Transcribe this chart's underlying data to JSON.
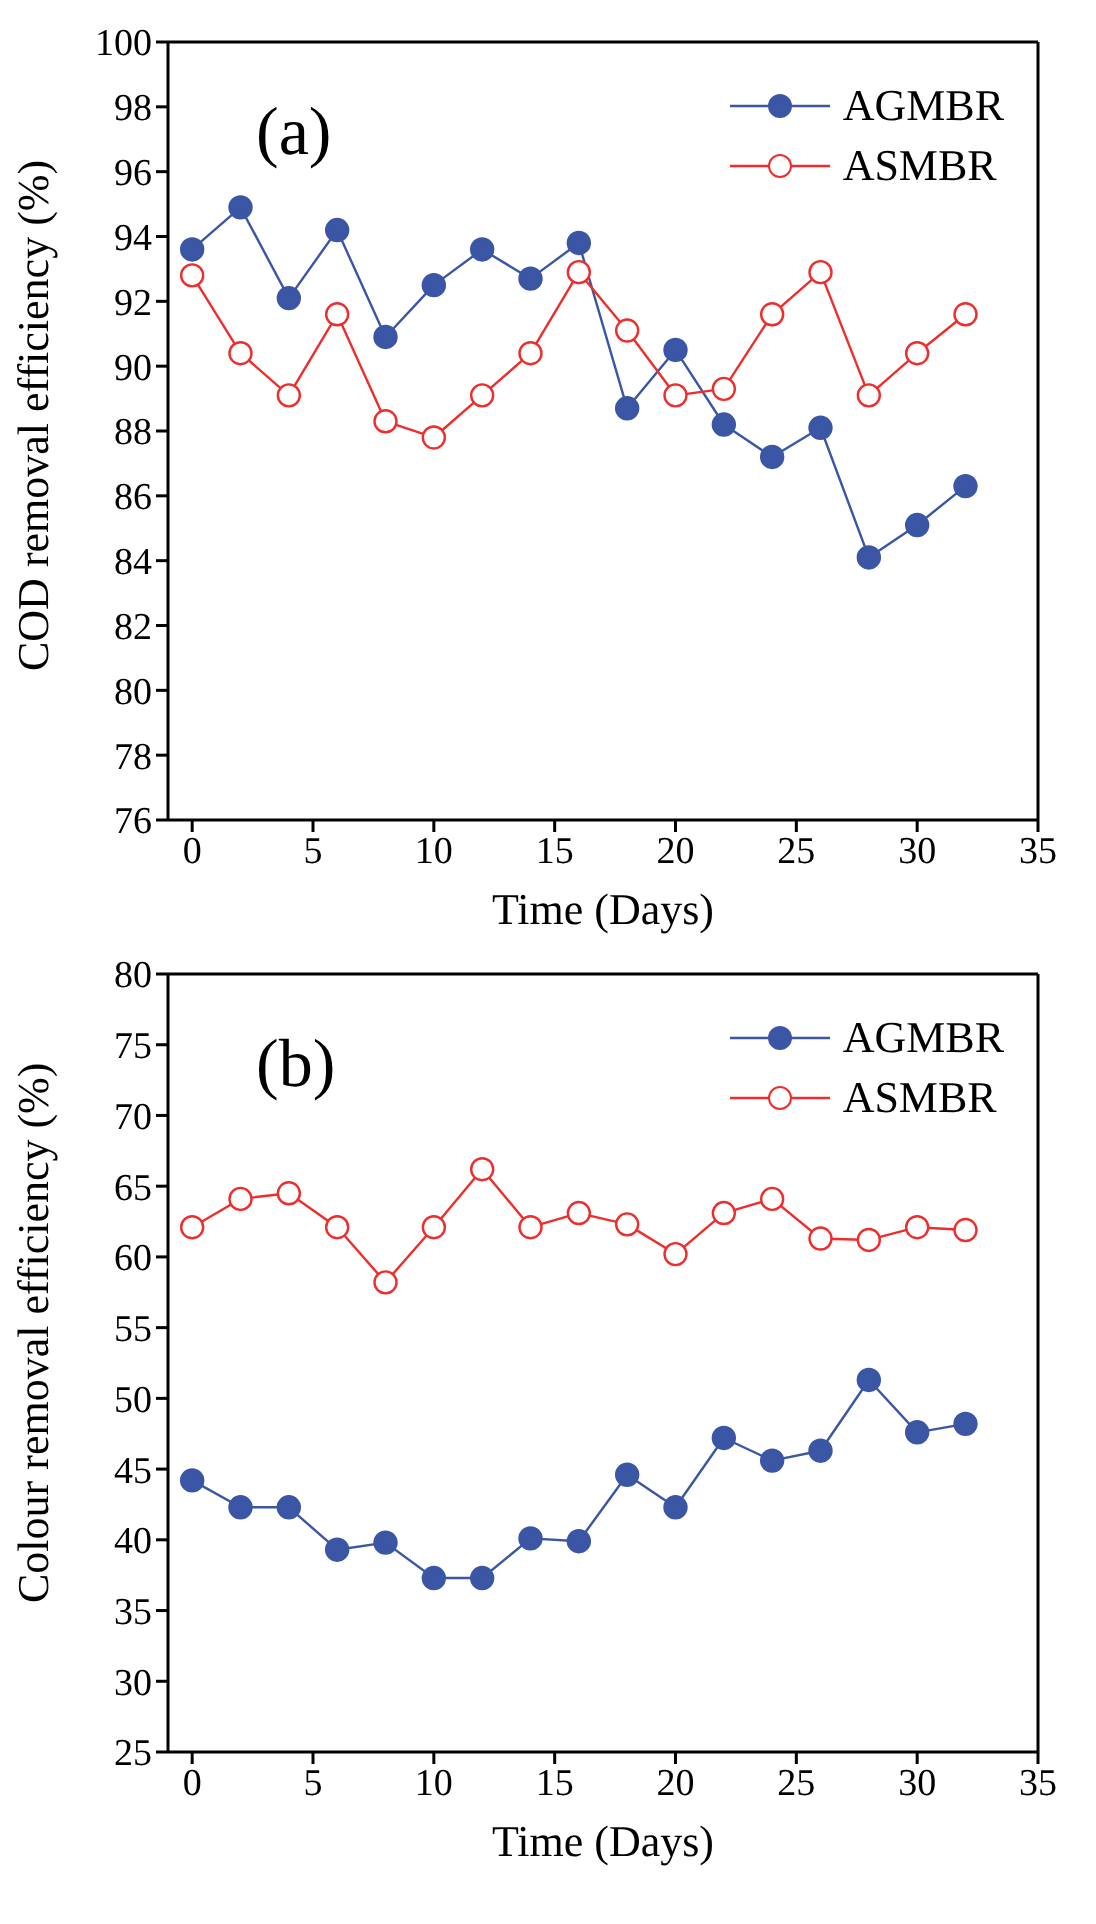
{
  "chart_data": [
    {
      "type": "line",
      "annotations": [
        "(a)"
      ],
      "xlabel": "Time (Days)",
      "ylabel": "COD removal efficiency (%)",
      "x": [
        0,
        2,
        4,
        6,
        8,
        10,
        12,
        14,
        16,
        18,
        20,
        22,
        24,
        26,
        28,
        30,
        32
      ],
      "xlim": [
        -1,
        35
      ],
      "xticks": [
        0,
        5,
        10,
        15,
        20,
        25,
        30,
        35
      ],
      "ylim": [
        76,
        100
      ],
      "yticks": [
        76,
        78,
        80,
        82,
        84,
        86,
        88,
        90,
        92,
        94,
        96,
        98,
        100
      ],
      "legend": "top right",
      "marker": "circle",
      "line_style": "solid",
      "series": [
        {
          "name": "AGMBR",
          "color": "#3a56a5",
          "values": [
            93.6,
            94.9,
            92.1,
            94.2,
            90.9,
            92.5,
            93.6,
            92.7,
            93.8,
            88.7,
            90.5,
            88.2,
            87.2,
            88.1,
            84.1,
            85.1,
            86.3
          ]
        },
        {
          "name": "ASMBR",
          "color": "#ee2d2d",
          "values": [
            92.8,
            90.4,
            89.1,
            91.6,
            88.3,
            87.8,
            89.1,
            90.4,
            92.9,
            91.1,
            89.1,
            89.3,
            91.6,
            92.9,
            89.1,
            90.4,
            91.6
          ]
        }
      ]
    },
    {
      "type": "line",
      "annotations": [
        "(b)"
      ],
      "xlabel": "Time (Days)",
      "ylabel": "Colour removal efficiency (%)",
      "x": [
        0,
        2,
        4,
        6,
        8,
        10,
        12,
        14,
        16,
        18,
        20,
        22,
        24,
        26,
        28,
        30,
        32
      ],
      "xlim": [
        -1,
        35
      ],
      "xticks": [
        0,
        5,
        10,
        15,
        20,
        25,
        30,
        35
      ],
      "ylim": [
        25,
        80
      ],
      "yticks": [
        25,
        30,
        35,
        40,
        45,
        50,
        55,
        60,
        65,
        70,
        75,
        80
      ],
      "legend": "top right",
      "marker": "circle",
      "line_style": "solid",
      "series": [
        {
          "name": "AGMBR",
          "color": "#3a56a5",
          "values": [
            44.2,
            42.3,
            42.3,
            39.3,
            39.8,
            37.3,
            37.3,
            40.1,
            39.9,
            44.6,
            42.3,
            47.2,
            45.6,
            46.3,
            51.3,
            47.6,
            48.2
          ]
        },
        {
          "name": "ASMBR",
          "color": "#ee2d2d",
          "values": [
            62.1,
            64.1,
            64.5,
            62.1,
            58.2,
            62.1,
            66.2,
            62.1,
            63.1,
            62.3,
            60.2,
            63.1,
            64.1,
            61.3,
            61.2,
            62.1,
            61.9
          ]
        }
      ]
    }
  ]
}
